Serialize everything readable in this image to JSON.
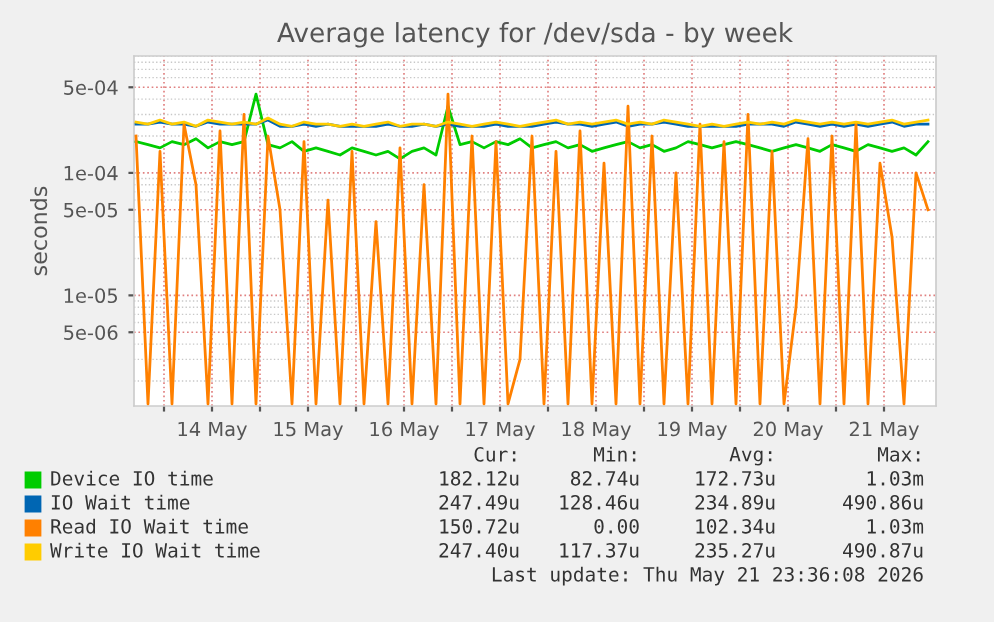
{
  "chart_data": {
    "type": "line",
    "title": "Average latency for /dev/sda - by week",
    "ylabel": "seconds",
    "x": [
      "2026-05-13T17:00",
      "2026-05-13T20:00",
      "2026-05-13T23:00",
      "2026-05-14T02:00",
      "2026-05-14T05:00",
      "2026-05-14T08:00",
      "2026-05-14T11:00",
      "2026-05-14T14:00",
      "2026-05-14T17:00",
      "2026-05-14T20:00",
      "2026-05-14T23:00",
      "2026-05-15T02:00",
      "2026-05-15T05:00",
      "2026-05-15T08:00",
      "2026-05-15T11:00",
      "2026-05-15T14:00",
      "2026-05-15T17:00",
      "2026-05-15T20:00",
      "2026-05-15T23:00",
      "2026-05-16T02:00",
      "2026-05-16T05:00",
      "2026-05-16T08:00",
      "2026-05-16T11:00",
      "2026-05-16T14:00",
      "2026-05-16T17:00",
      "2026-05-16T20:00",
      "2026-05-16T23:00",
      "2026-05-17T02:00",
      "2026-05-17T05:00",
      "2026-05-17T08:00",
      "2026-05-17T11:00",
      "2026-05-17T14:00",
      "2026-05-17T17:00",
      "2026-05-17T20:00",
      "2026-05-17T23:00",
      "2026-05-18T02:00",
      "2026-05-18T05:00",
      "2026-05-18T08:00",
      "2026-05-18T11:00",
      "2026-05-18T14:00",
      "2026-05-18T17:00",
      "2026-05-18T20:00",
      "2026-05-18T23:00",
      "2026-05-19T02:00",
      "2026-05-19T05:00",
      "2026-05-19T08:00",
      "2026-05-19T11:00",
      "2026-05-19T14:00",
      "2026-05-19T17:00",
      "2026-05-19T20:00",
      "2026-05-19T23:00",
      "2026-05-20T02:00",
      "2026-05-20T05:00",
      "2026-05-20T08:00",
      "2026-05-20T11:00",
      "2026-05-20T14:00",
      "2026-05-20T17:00",
      "2026-05-20T20:00",
      "2026-05-20T23:00",
      "2026-05-21T02:00",
      "2026-05-21T05:00",
      "2026-05-21T08:00",
      "2026-05-21T11:00",
      "2026-05-21T14:00",
      "2026-05-21T17:00",
      "2026-05-21T20:00",
      "2026-05-21T23:00"
    ],
    "series": [
      {
        "name": "Device IO time",
        "color": "#00cc00",
        "values": [
          0.00018,
          0.00017,
          0.00016,
          0.00018,
          0.00017,
          0.00019,
          0.00016,
          0.00018,
          0.00017,
          0.00018,
          0.00044,
          0.00017,
          0.00016,
          0.00018,
          0.00015,
          0.00016,
          0.00015,
          0.00014,
          0.00016,
          0.00015,
          0.00014,
          0.00015,
          0.00013,
          0.00015,
          0.00016,
          0.00014,
          0.00035,
          0.00017,
          0.00018,
          0.00016,
          0.00018,
          0.00017,
          0.00019,
          0.00016,
          0.00017,
          0.00018,
          0.00016,
          0.00017,
          0.00015,
          0.00016,
          0.00017,
          0.00018,
          0.00016,
          0.00017,
          0.00015,
          0.00016,
          0.00018,
          0.00017,
          0.00016,
          0.00017,
          0.00018,
          0.00017,
          0.00016,
          0.00015,
          0.00016,
          0.00017,
          0.00016,
          0.00015,
          0.00017,
          0.00016,
          0.00015,
          0.00017,
          0.00016,
          0.00015,
          0.00016,
          0.00014,
          0.00018
        ]
      },
      {
        "name": "IO Wait time",
        "color": "#0066b3",
        "values": [
          0.00025,
          0.00025,
          0.00026,
          0.00025,
          0.00025,
          0.00024,
          0.00026,
          0.00025,
          0.00025,
          0.00025,
          0.00025,
          0.00027,
          0.00024,
          0.00024,
          0.00025,
          0.00024,
          0.00025,
          0.00024,
          0.00024,
          0.00024,
          0.00024,
          0.00025,
          0.00024,
          0.00024,
          0.00025,
          0.00024,
          0.00025,
          0.00024,
          0.00024,
          0.00024,
          0.00025,
          0.00024,
          0.00024,
          0.00024,
          0.00025,
          0.00026,
          0.00025,
          0.00025,
          0.00024,
          0.00025,
          0.00026,
          0.00024,
          0.00025,
          0.00025,
          0.00026,
          0.00025,
          0.00024,
          0.00024,
          0.00024,
          0.00024,
          0.00024,
          0.00025,
          0.00025,
          0.00025,
          0.00024,
          0.00026,
          0.00025,
          0.00024,
          0.00025,
          0.00024,
          0.00025,
          0.00024,
          0.00025,
          0.00026,
          0.00024,
          0.00025,
          0.00025
        ]
      },
      {
        "name": "Read IO Wait time",
        "color": "#ff8000",
        "values": [
          0.0002,
          1.3e-06,
          0.00015,
          1.3e-06,
          0.00025,
          8e-05,
          1.3e-06,
          0.00022,
          1.3e-06,
          0.0003,
          1.3e-06,
          0.0002,
          5e-05,
          1.3e-06,
          0.00018,
          1.3e-06,
          6e-05,
          1.3e-06,
          0.00015,
          1.3e-06,
          4e-05,
          1.3e-06,
          0.00016,
          1.3e-06,
          8e-05,
          1.3e-06,
          0.00044,
          1.3e-06,
          0.0002,
          1.3e-06,
          0.00018,
          1.3e-06,
          3e-06,
          0.0002,
          1.3e-06,
          0.00015,
          1.3e-06,
          0.00022,
          1.3e-06,
          0.00012,
          1.3e-06,
          0.00035,
          1.3e-06,
          0.0002,
          1.3e-06,
          0.0001,
          1.3e-06,
          0.00025,
          1.3e-06,
          0.00018,
          1.3e-06,
          0.0003,
          1.3e-06,
          0.00015,
          1.3e-06,
          8e-06,
          0.00019,
          1.3e-06,
          0.0002,
          1.3e-06,
          0.00025,
          1.3e-06,
          0.00012,
          3e-05,
          1.3e-06,
          0.0001,
          5e-05
        ]
      },
      {
        "name": "Write IO Wait time",
        "color": "#ffcc00",
        "values": [
          0.00026,
          0.00025,
          0.00027,
          0.00025,
          0.00026,
          0.00024,
          0.00027,
          0.00026,
          0.00025,
          0.00026,
          0.00025,
          0.00028,
          0.00025,
          0.00024,
          0.00026,
          0.00025,
          0.00025,
          0.00024,
          0.00025,
          0.00024,
          0.00025,
          0.00026,
          0.00024,
          0.00025,
          0.00025,
          0.00024,
          0.00026,
          0.00025,
          0.00024,
          0.00025,
          0.00026,
          0.00025,
          0.00024,
          0.00025,
          0.00026,
          0.00027,
          0.00025,
          0.00026,
          0.00025,
          0.00026,
          0.00027,
          0.00025,
          0.00026,
          0.00025,
          0.00027,
          0.00026,
          0.00025,
          0.00024,
          0.00025,
          0.00024,
          0.00025,
          0.00026,
          0.00025,
          0.00026,
          0.00025,
          0.00027,
          0.00026,
          0.00025,
          0.00026,
          0.00025,
          0.00026,
          0.00025,
          0.00026,
          0.00027,
          0.00025,
          0.00026,
          0.00027
        ]
      }
    ],
    "log": "y",
    "ylim": [
      1.25e-06,
      0.0009
    ],
    "yticks": [
      {
        "value": 5e-06,
        "label": "5e-06"
      },
      {
        "value": 1e-05,
        "label": "1e-05"
      },
      {
        "value": 5e-05,
        "label": "5e-05"
      },
      {
        "value": 0.0001,
        "label": "1e-04"
      },
      {
        "value": 0.0005,
        "label": "5e-04"
      }
    ],
    "xlim": [
      "2026-05-13T16:30",
      "2026-05-22T01:00"
    ],
    "xticks": [
      {
        "value": "2026-05-14T00:00",
        "label": null
      },
      {
        "value": "2026-05-14T12:00",
        "label": "14 May"
      },
      {
        "value": "2026-05-15T00:00",
        "label": null
      },
      {
        "value": "2026-05-15T12:00",
        "label": "15 May"
      },
      {
        "value": "2026-05-16T00:00",
        "label": null
      },
      {
        "value": "2026-05-16T12:00",
        "label": "16 May"
      },
      {
        "value": "2026-05-17T00:00",
        "label": null
      },
      {
        "value": "2026-05-17T12:00",
        "label": "17 May"
      },
      {
        "value": "2026-05-18T00:00",
        "label": null
      },
      {
        "value": "2026-05-18T12:00",
        "label": "18 May"
      },
      {
        "value": "2026-05-19T00:00",
        "label": null
      },
      {
        "value": "2026-05-19T12:00",
        "label": "19 May"
      },
      {
        "value": "2026-05-20T00:00",
        "label": null
      },
      {
        "value": "2026-05-20T12:00",
        "label": "20 May"
      },
      {
        "value": "2026-05-21T00:00",
        "label": null
      },
      {
        "value": "2026-05-21T12:00",
        "label": "21 May"
      }
    ],
    "grid": true,
    "legend": "bottom",
    "marker": "none",
    "line_style": "solid",
    "annotations": [
      "Cur:",
      "Min:",
      "Avg:",
      "Max:",
      "182.12u",
      "82.74u",
      "172.73u",
      "1.03m",
      "247.49u",
      "128.46u",
      "234.89u",
      "490.86u",
      "150.72u",
      "0.00",
      "102.34u",
      "1.03m",
      "247.40u",
      "117.37u",
      "235.27u",
      "490.87u",
      "Last update: Thu May 21 23:36:08 2026"
    ]
  }
}
